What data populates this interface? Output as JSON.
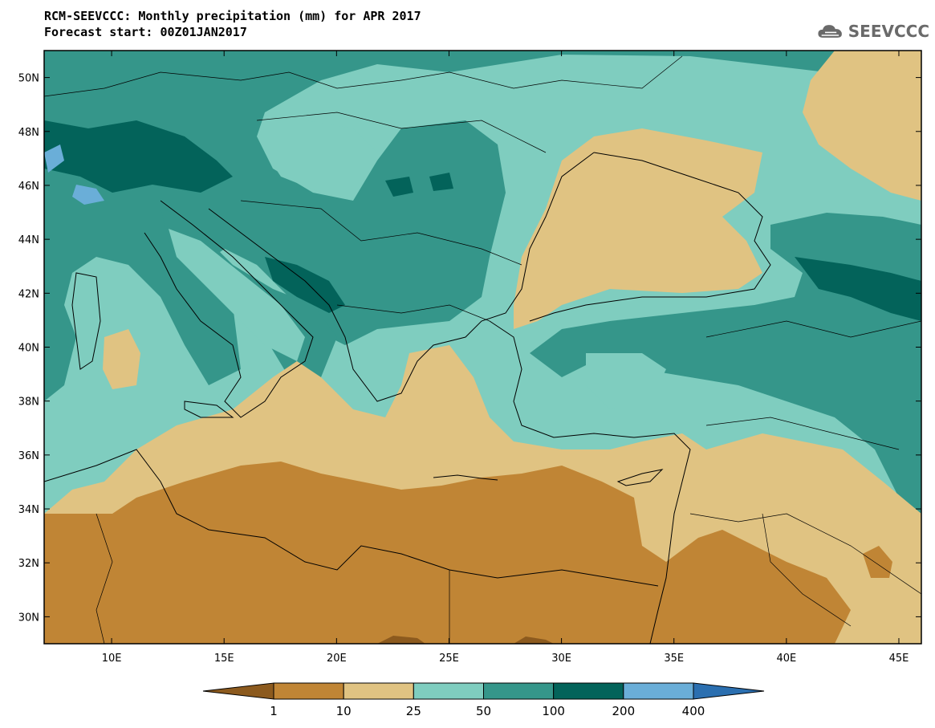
{
  "header": {
    "title_line1": "RCM-SEEVCCC: Monthly precipitation (mm) for APR 2017",
    "title_line2": "Forecast start: 00Z01JAN2017"
  },
  "logo": {
    "text": "SEEVCCC",
    "icon": "cloud-icon"
  },
  "map": {
    "lon_ticks": [
      "10E",
      "15E",
      "20E",
      "25E",
      "30E",
      "35E",
      "40E",
      "45E"
    ],
    "lat_ticks": [
      "50N",
      "48N",
      "46N",
      "44N",
      "42N",
      "40N",
      "38N",
      "36N",
      "34N",
      "32N",
      "30N"
    ],
    "extent": {
      "lon_min": 7,
      "lon_max": 46,
      "lat_min": 29,
      "lat_max": 51
    }
  },
  "colorbar": {
    "labels": [
      "1",
      "10",
      "25",
      "50",
      "100",
      "200",
      "400"
    ],
    "colors": [
      "#8c5a1e",
      "#c08535",
      "#e0c382",
      "#7fcdbf",
      "#35968a",
      "#03635a",
      "#6aaed8",
      "#2b6fb0"
    ]
  }
}
